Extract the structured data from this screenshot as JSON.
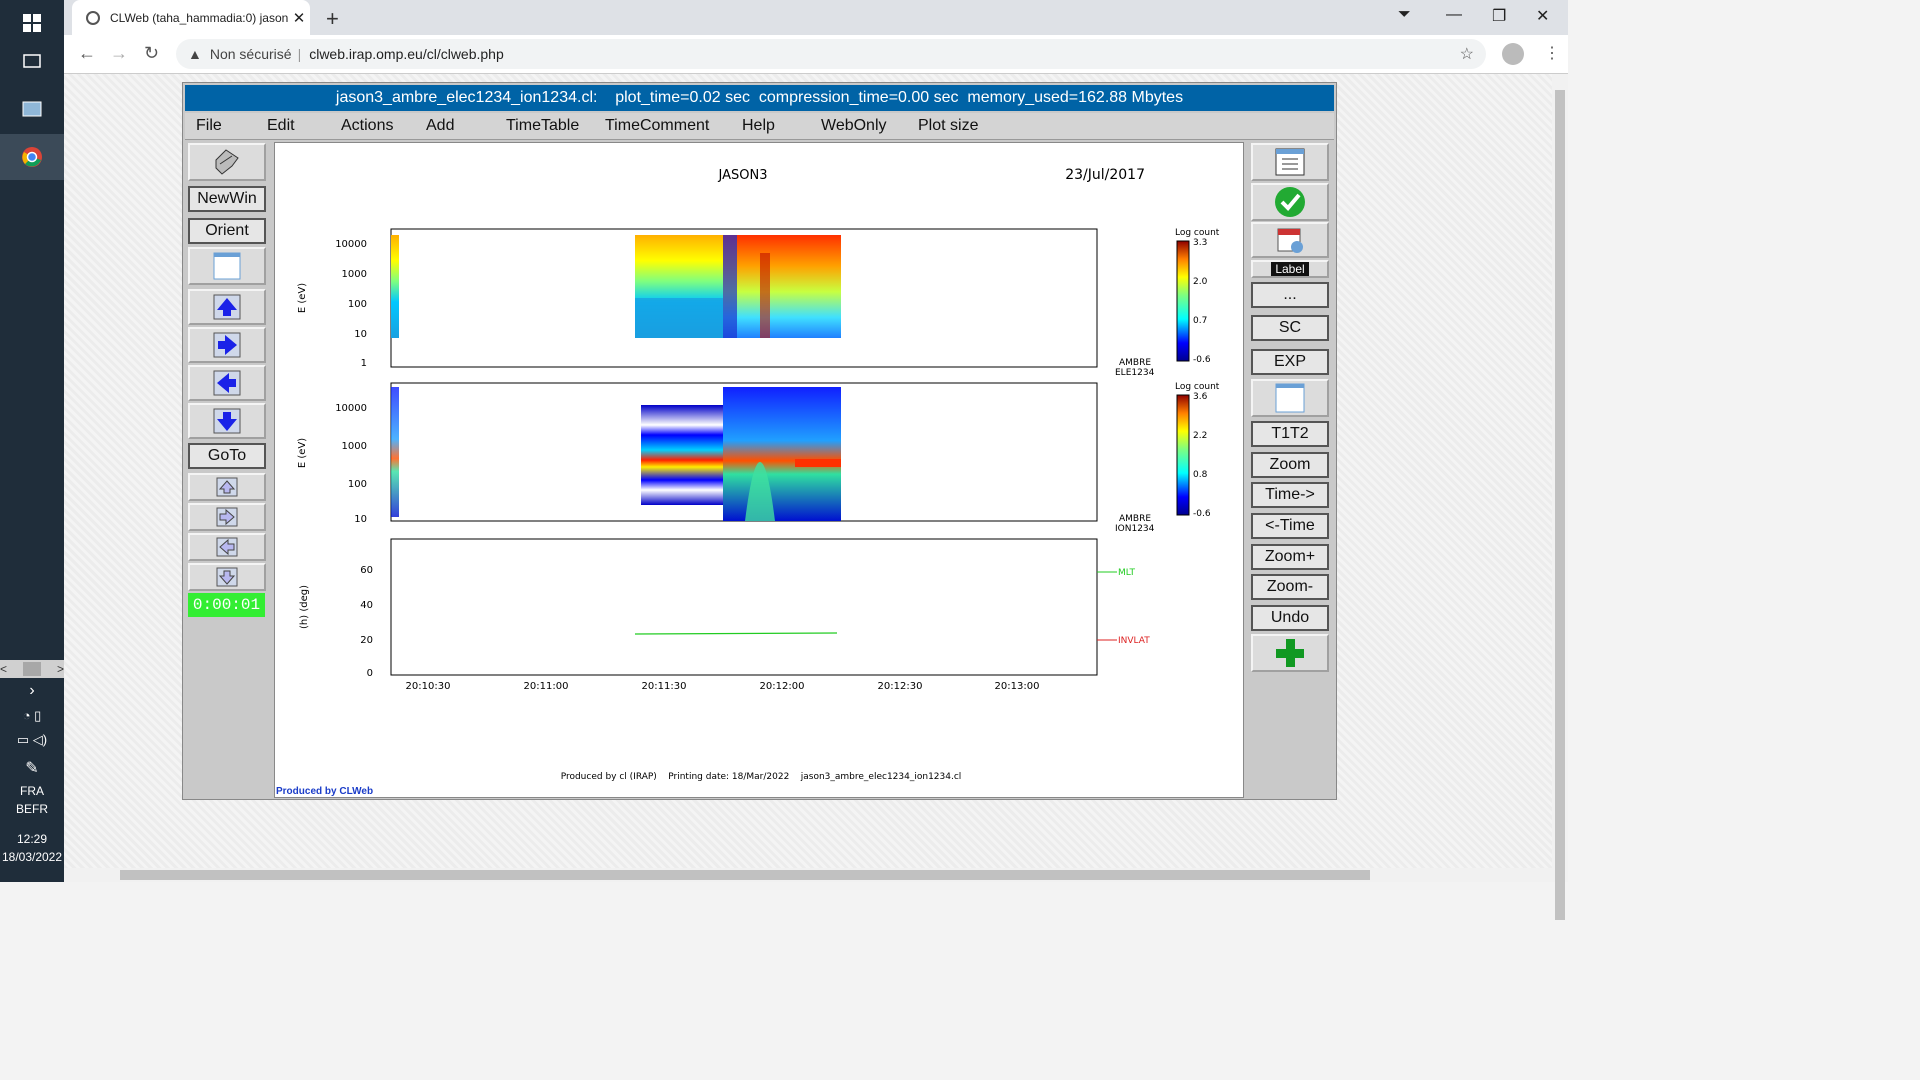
{
  "taskbar": {
    "time": "12:29",
    "date": "18/03/2022",
    "lang1": "FRA",
    "lang2": "BEFR"
  },
  "browser": {
    "tab_title": "CLWeb (taha_hammadia:0) jason3",
    "security": "Non sécurisé",
    "url": "clweb.irap.omp.eu/cl/clweb.php"
  },
  "app": {
    "title_bar": "jason3_ambre_elec1234_ion1234.cl:    plot_time=0.02 sec  compression_time=0.00 sec  memory_used=162.88 Mbytes",
    "menu": [
      "File",
      "Edit",
      "Actions",
      "Add",
      "TimeTable",
      "TimeComment",
      "Help",
      "WebOnly",
      "Plot size"
    ],
    "left_buttons": {
      "newwin": "NewWin",
      "orient": "Orient",
      "goto": "GoTo"
    },
    "timer": "0:00:01",
    "right_buttons": {
      "label": "Label",
      "more": "...",
      "sc": "SC",
      "exp": "EXP",
      "t1t2": "T1T2",
      "zoom": "Zoom",
      "time_fwd": "Time->",
      "time_back": "<-Time",
      "zoom_in": "Zoom+",
      "zoom_out": "Zoom-",
      "undo": "Undo"
    },
    "produced_by": "Produced by CLWeb"
  },
  "plot": {
    "mission": "JASON3",
    "date": "23/Jul/2017",
    "footer": "Produced by cl (IRAP)    Printing date: 18/Mar/2022    jason3_ambre_elec1234_ion1234.cl",
    "panel1": {
      "ylabel": "E (eV)",
      "yticks": [
        "10000",
        "1000",
        "100",
        "10",
        "1"
      ],
      "label": "AMBRE",
      "label2": "ELE1234",
      "colorbar_title": "Log count",
      "colorbar_ticks": [
        "3.3",
        "2.0",
        "0.7",
        "-0.6"
      ]
    },
    "panel2": {
      "ylabel": "E (eV)",
      "yticks": [
        "10000",
        "1000",
        "100",
        "10"
      ],
      "label": "AMBRE",
      "label2": "ION1234",
      "colorbar_title": "Log count",
      "colorbar_ticks": [
        "3.6",
        "2.2",
        "0.8",
        "-0.6"
      ]
    },
    "panel3": {
      "ylabel": "(h) (deg)",
      "yticks": [
        "60",
        "40",
        "20",
        "0"
      ],
      "legend": [
        {
          "name": "MLT",
          "color": "#22cc22"
        },
        {
          "name": "INVLAT",
          "color": "#dd2222"
        }
      ]
    },
    "xticks": [
      "20:10:30",
      "20:11:00",
      "20:11:30",
      "20:12:00",
      "20:12:30",
      "20:13:00"
    ]
  }
}
